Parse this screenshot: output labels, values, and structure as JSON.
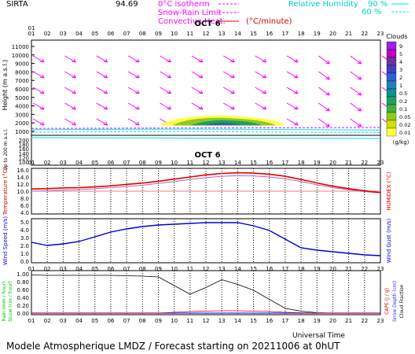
{
  "header": {
    "station": "SIRTA",
    "alt_value": "94.69",
    "iso_label": "0°C isotherm",
    "snow_label": "Snow-Rain Limit",
    "conv_label": "Convective Heat.",
    "conv_unit": "(°C/minute)",
    "rh_label": "Relative Humidity",
    "rh_90": "90 %",
    "rh_60": "60 %"
  },
  "footer": {
    "universal_time": "Universal Time",
    "caption": "Modele Atmospherique LMDZ / Forecast starting on 20211006 at 0hUT"
  },
  "colors": {
    "magenta": "#ff00ff",
    "cyan": "#00e0e0",
    "temp": "#e00000",
    "humidex": "#c060c0",
    "wind": "#0000d0",
    "rain": "#00c000",
    "snow": "#3030ff",
    "cape": "#e00000",
    "cloud": "#000000"
  },
  "chart_data": {
    "type": "line",
    "title": "OCT 6",
    "hours": [
      "01",
      "02",
      "03",
      "04",
      "05",
      "06",
      "07",
      "08",
      "09",
      "10",
      "11",
      "12",
      "13",
      "14",
      "15",
      "16",
      "17",
      "18",
      "19",
      "20",
      "21",
      "22",
      "23"
    ],
    "panels": {
      "clouds": {
        "ylabel": "Height (m a.s.l.)",
        "ylabel_low": "Up to 200 m a.s.l.",
        "yticks_upper": [
          "11000",
          "10000",
          "9000",
          "8000",
          "7000",
          "6000",
          "5000",
          "4000",
          "3000",
          "2000",
          "1000"
        ],
        "yticks_lower": [
          "200",
          "180",
          "160",
          "140",
          "120",
          "100"
        ],
        "legend_title": "Clouds",
        "legend_unit": "(g/kg)",
        "legend_levels": [
          "9",
          "5",
          "4",
          "3",
          "2",
          "1",
          "0.5",
          "0.2",
          "0.1",
          "0.05",
          "0.02",
          "0.01"
        ],
        "legend_colors": [
          "#a020f0",
          "#c000c0",
          "#7030a0",
          "#4040c0",
          "#3060d0",
          "#2080c0",
          "#109090",
          "#20a060",
          "#40b040",
          "#90c820",
          "#d0e000",
          "#ffff40"
        ],
        "cloud_layer": {
          "hour_start": 9.0,
          "hour_end": 17.0,
          "peak_hour": 13.0,
          "base_m": 1700,
          "top_m": 2600
        }
      },
      "temperature": {
        "ylabel_left": "Temperature (°C)",
        "ylabel_right": "HUMIDEX (°C)",
        "yticks": [
          "16.0",
          "14.0",
          "12.0",
          "10.0",
          "8.0",
          "6.0",
          "4.0"
        ],
        "ylim": [
          4.0,
          16.0
        ],
        "temperature": [
          10.6,
          10.7,
          10.9,
          11.0,
          11.2,
          11.5,
          11.9,
          12.3,
          12.8,
          13.4,
          14.0,
          14.6,
          15.0,
          15.2,
          15.1,
          14.8,
          14.2,
          13.3,
          12.3,
          11.4,
          10.7,
          10.1,
          9.6
        ],
        "humidex": [
          10.0,
          10.1,
          10.3,
          10.5,
          10.7,
          11.0,
          11.3,
          11.7,
          12.2,
          12.7,
          13.3,
          13.8,
          14.2,
          14.4,
          14.3,
          14.0,
          13.5,
          12.7,
          11.8,
          11.0,
          10.4,
          9.9,
          9.5
        ]
      },
      "wind": {
        "ylabel_left": "Wind Speed (m/s)",
        "ylabel_right": "Wind Gust (m/s)",
        "yticks": [
          "5.0",
          "4.0",
          "3.0",
          "2.0",
          "1.0",
          "0.0"
        ],
        "ylim": [
          0.0,
          5.0
        ],
        "wind_speed": [
          2.4,
          2.0,
          2.2,
          2.5,
          3.1,
          3.7,
          4.1,
          4.4,
          4.6,
          4.7,
          4.8,
          4.9,
          4.9,
          4.9,
          4.5,
          3.9,
          2.8,
          1.7,
          1.4,
          1.2,
          1.0,
          0.8,
          0.7
        ]
      },
      "precip": {
        "ylabel_left1": "Rain (mm / hour)",
        "ylabel_left2": "Snow (cm / hour)",
        "ylabel_right1": "CAPE (J / g)",
        "ylabel_right2": "Snow Depth (cm)",
        "ylabel_right3": "Cloud Fraction",
        "yticks": [
          "1.00",
          "0.80",
          "0.60",
          "0.40",
          "0.20",
          "0.00"
        ],
        "ylim": [
          0.0,
          1.0
        ],
        "cloud_fraction": [
          0.97,
          0.96,
          0.96,
          0.96,
          0.96,
          0.96,
          0.95,
          0.94,
          0.92,
          0.7,
          0.48,
          0.65,
          0.85,
          0.73,
          0.58,
          0.35,
          0.12,
          0.05,
          0.01,
          0.0,
          0.0,
          0.0,
          0.0
        ],
        "rain": [
          0,
          0,
          0,
          0,
          0,
          0,
          0,
          0,
          0,
          0,
          0,
          0,
          0,
          0,
          0,
          0,
          0,
          0,
          0,
          0,
          0,
          0,
          0
        ],
        "cape": [
          0,
          0,
          0,
          0,
          0,
          0,
          0,
          0,
          0,
          0.02,
          0.04,
          0.05,
          0.06,
          0.06,
          0.05,
          0.04,
          0.02,
          0.01,
          0,
          0,
          0,
          0,
          0
        ]
      }
    }
  }
}
